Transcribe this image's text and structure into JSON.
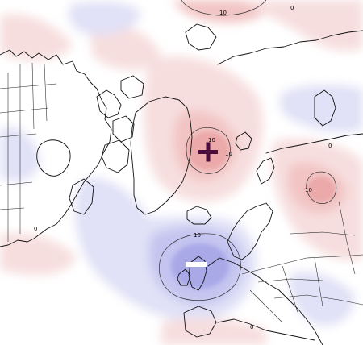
{
  "map": {
    "colors": {
      "background": "#ffffff",
      "positive_light": "#f7dede",
      "positive_mid": "#f2c4c4",
      "positive_strong": "#eba9a9",
      "negative_light": "#e1e1f7",
      "negative_mid": "#c4c4f0",
      "negative_strong": "#a9a9e8",
      "marker_plus": "#4a0c3c",
      "marker_minus": "#ffffff",
      "coastline": "#111111"
    },
    "contour_labels": [
      "10",
      "10",
      "10",
      "0",
      "10",
      "10",
      "0",
      "0",
      "0"
    ],
    "markers": {
      "high": "+",
      "low": "−"
    }
  }
}
